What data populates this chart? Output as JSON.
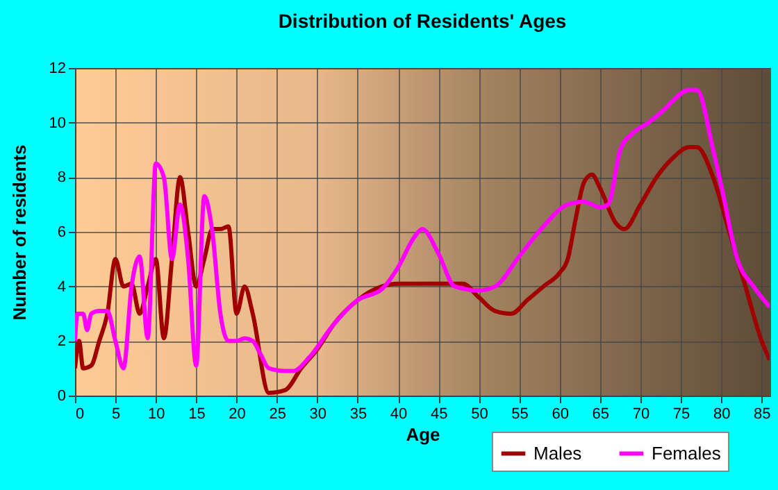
{
  "chart_data": {
    "type": "line",
    "title": "Distribution of Residents' Ages",
    "xlabel": "Age",
    "ylabel": "Number of residents",
    "xlim": [
      0,
      86
    ],
    "xticks": [
      0,
      5,
      10,
      15,
      20,
      25,
      30,
      35,
      40,
      45,
      50,
      55,
      60,
      65,
      70,
      75,
      80,
      85
    ],
    "ylim": [
      0,
      12
    ],
    "yticks": [
      0,
      2,
      4,
      6,
      8,
      10,
      12
    ],
    "grid": true,
    "legend": "bottom",
    "series": [
      {
        "name": "Males",
        "color": "#a00000",
        "x": [
          0,
          0.5,
          1,
          2,
          3,
          4,
          5,
          6,
          7,
          8,
          9,
          10,
          11,
          12,
          13,
          14,
          15,
          16,
          17,
          18,
          19,
          20,
          21,
          22,
          24,
          26,
          28,
          30,
          32,
          35,
          38,
          40,
          45,
          48,
          50,
          52,
          54,
          56,
          58,
          60,
          61,
          62,
          63,
          64,
          65,
          67,
          68,
          70,
          72,
          74,
          76,
          77,
          79,
          81,
          83,
          85,
          86
        ],
        "values": [
          1,
          2,
          1,
          1.1,
          2,
          3,
          5,
          4,
          4.1,
          3,
          4,
          5,
          2.1,
          5,
          8,
          6,
          4,
          5,
          6.1,
          6.1,
          6.2,
          3,
          4,
          3,
          0.1,
          0.2,
          1,
          1.7,
          2.6,
          3.5,
          4,
          4.1,
          4.1,
          4.1,
          3.6,
          3.1,
          3,
          3.5,
          4,
          4.5,
          5,
          6.5,
          7.8,
          8.1,
          7.6,
          6.3,
          6.1,
          7,
          8,
          8.7,
          9.1,
          9.1,
          8,
          6,
          4,
          2,
          1.3
        ]
      },
      {
        "name": "Females",
        "color": "#ff00ff",
        "x": [
          0,
          0.3,
          1,
          1.5,
          2,
          3,
          4,
          5,
          6,
          7,
          8,
          9,
          10,
          11,
          12,
          13,
          14,
          15,
          16,
          17,
          18,
          19,
          20,
          21,
          22,
          23,
          24,
          26,
          27,
          29,
          32,
          35,
          38,
          40,
          42,
          43,
          45,
          47,
          50,
          52,
          55,
          58,
          61,
          63,
          65,
          66,
          67.5,
          69,
          71,
          73,
          74,
          76,
          77,
          79,
          80,
          82,
          84,
          86
        ],
        "values": [
          2,
          3,
          3,
          2.4,
          3,
          3.1,
          3.1,
          2,
          1,
          4,
          5.1,
          2.1,
          8.5,
          8,
          5,
          7,
          5,
          1.1,
          7.3,
          6,
          3,
          2,
          2,
          2.1,
          2,
          1.5,
          1,
          0.9,
          0.9,
          1.4,
          2.6,
          3.5,
          3.9,
          4.7,
          5.8,
          6.1,
          5.2,
          4,
          3.85,
          4,
          5.1,
          6.2,
          7,
          7.1,
          6.9,
          7,
          9,
          9.6,
          10,
          10.5,
          10.8,
          11.2,
          11.2,
          9,
          7.7,
          5,
          4,
          3.25
        ]
      }
    ]
  }
}
